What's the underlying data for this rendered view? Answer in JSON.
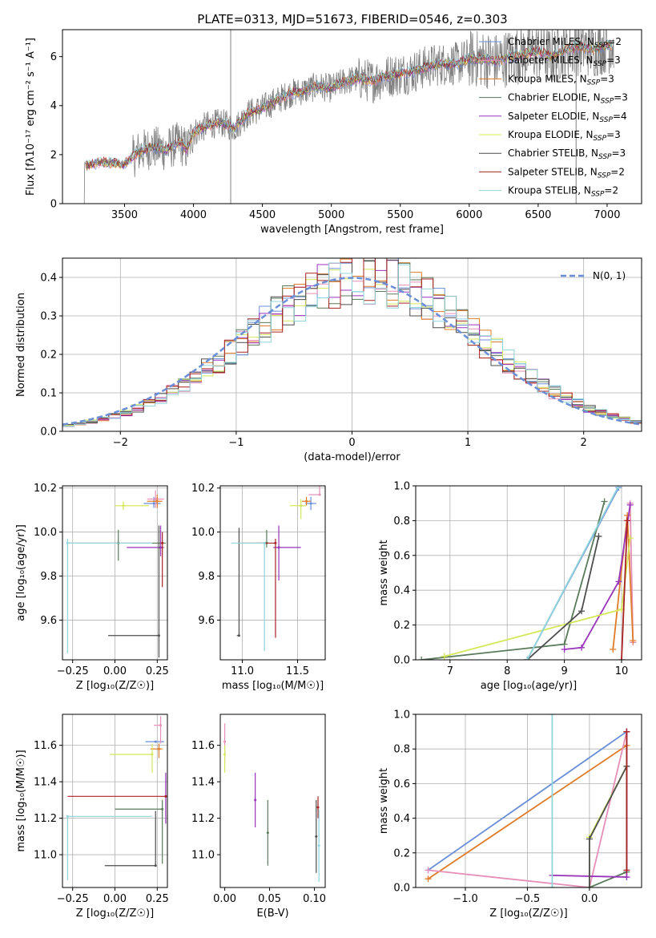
{
  "title": "PLATE=0313, MJD=51673, FIBERID=0546, z=0.303",
  "colors": {
    "gray": "#808080",
    "blue": "#6a8fd8",
    "orange": "#e07b28",
    "pink": "#e68fb8",
    "green": "#5a7a5a",
    "purple": "#9933bb",
    "yellow": "#d4e85a",
    "dark": "#4d4d4d",
    "red": "#aa2222",
    "cyan": "#90d4dc"
  },
  "chart_data": [
    {
      "type": "line",
      "id": "spectrum",
      "xlabel": "wavelength [Angstrom, rest frame]",
      "ylabel": "Flux [fλ10⁻¹⁷ erg cm⁻² s⁻¹ A⁻¹]",
      "xlim": [
        3050,
        7250
      ],
      "ylim": [
        0,
        7.1
      ],
      "xticks": [
        3500,
        4000,
        4500,
        5000,
        5500,
        6000,
        6500,
        7000
      ],
      "yticks": [
        0,
        2,
        4,
        6
      ],
      "legend_placement": "top-right",
      "legend": [
        {
          "label": "Chabrier MILES, N",
          "sub": "SSP",
          "tail": "=2",
          "color": "blue"
        },
        {
          "label": "Salpeter MILES, N",
          "sub": "SSP",
          "tail": "=3",
          "color": "pink"
        },
        {
          "label": "Kroupa MILES, N",
          "sub": "SSP",
          "tail": "=3",
          "color": "orange"
        },
        {
          "label": "Chabrier ELODIE, N",
          "sub": "SSP",
          "tail": "=3",
          "color": "green"
        },
        {
          "label": "Salpeter ELODIE, N",
          "sub": "SSP",
          "tail": "=4",
          "color": "purple"
        },
        {
          "label": "Kroupa ELODIE, N",
          "sub": "SSP",
          "tail": "=3",
          "color": "yellow"
        },
        {
          "label": "Chabrier STELIB, N",
          "sub": "SSP",
          "tail": "=3",
          "color": "dark"
        },
        {
          "label": "Salpeter STELIB, N",
          "sub": "SSP",
          "tail": "=2",
          "color": "red"
        },
        {
          "label": "Kroupa STELIB, N",
          "sub": "SSP",
          "tail": "=2",
          "color": "cyan"
        }
      ],
      "continuum": [
        [
          3200,
          1.55
        ],
        [
          3350,
          1.7
        ],
        [
          3500,
          1.6
        ],
        [
          3600,
          2.1
        ],
        [
          3700,
          2.3
        ],
        [
          3800,
          2.2
        ],
        [
          3900,
          2.5
        ],
        [
          3950,
          2.2
        ],
        [
          4000,
          2.9
        ],
        [
          4100,
          3.2
        ],
        [
          4200,
          3.3
        ],
        [
          4300,
          3.1
        ],
        [
          4400,
          3.7
        ],
        [
          4500,
          3.9
        ],
        [
          4600,
          4.2
        ],
        [
          4700,
          4.5
        ],
        [
          4800,
          4.6
        ],
        [
          4900,
          4.8
        ],
        [
          5000,
          4.7
        ],
        [
          5100,
          5.0
        ],
        [
          5200,
          5.1
        ],
        [
          5300,
          5.0
        ],
        [
          5400,
          5.2
        ],
        [
          5500,
          5.3
        ],
        [
          5600,
          5.4
        ],
        [
          5700,
          5.6
        ],
        [
          5800,
          5.7
        ],
        [
          5900,
          5.7
        ],
        [
          6000,
          5.9
        ],
        [
          6100,
          5.9
        ],
        [
          6200,
          5.8
        ],
        [
          6300,
          6.0
        ],
        [
          6400,
          6.1
        ],
        [
          6500,
          6.2
        ],
        [
          6600,
          6.0
        ],
        [
          6700,
          6.3
        ],
        [
          6800,
          6.4
        ],
        [
          6900,
          6.3
        ],
        [
          7000,
          6.5
        ],
        [
          7050,
          6.4
        ]
      ]
    },
    {
      "type": "bar",
      "id": "residuals",
      "xlabel": "(data-model)/error",
      "ylabel": "Normed distribution",
      "xlim": [
        -2.5,
        2.5
      ],
      "ylim": [
        0,
        0.45
      ],
      "xticks": [
        -2,
        -1,
        0,
        1,
        2
      ],
      "yticks": [
        0.0,
        0.1,
        0.2,
        0.3,
        0.4
      ],
      "grid": true,
      "legend_placement": "top-right",
      "legend_label": "N(0, 1)",
      "bin_width": 0.1
    },
    {
      "type": "scatter",
      "id": "z-age",
      "xlabel": "Z [log₁₀(Z/Z☉)]",
      "ylabel": "age  [log₁₀(age/yr)]",
      "xlim": [
        -0.31,
        0.31
      ],
      "ylim": [
        9.42,
        10.21
      ],
      "xticks": [
        -0.25,
        0.0,
        0.25
      ],
      "yticks": [
        9.6,
        9.8,
        10.0,
        10.2
      ],
      "grid": true,
      "points": [
        {
          "x": 0.23,
          "y": 10.13,
          "xe": [
            0.06,
            0.04
          ],
          "ye": [
            0.02,
            0.03
          ],
          "c": "blue"
        },
        {
          "x": 0.24,
          "y": 10.15,
          "xe": [
            0.05,
            0.05
          ],
          "ye": [
            0.04,
            0.04
          ],
          "c": "pink"
        },
        {
          "x": 0.25,
          "y": 10.14,
          "xe": [
            0.06,
            0.03
          ],
          "ye": [
            0.03,
            0.03
          ],
          "c": "orange"
        },
        {
          "x": 0.02,
          "y": 9.95,
          "xe": [
            0.3,
            0.28
          ],
          "ye": [
            0.08,
            0.06
          ],
          "c": "green"
        },
        {
          "x": 0.27,
          "y": 9.93,
          "xe": [
            0.2,
            0.02
          ],
          "ye": [
            0.04,
            0.1
          ],
          "c": "purple"
        },
        {
          "x": 0.05,
          "y": 10.12,
          "xe": [
            0.05,
            0.15
          ],
          "ye": [
            0.02,
            0.02
          ],
          "c": "yellow"
        },
        {
          "x": 0.26,
          "y": 9.53,
          "xe": [
            0.3,
            0.0
          ],
          "ye": [
            0.1,
            0.5
          ],
          "c": "dark"
        },
        {
          "x": 0.28,
          "y": 9.95,
          "xe": [
            0.0,
            0.0
          ],
          "ye": [
            0.2,
            0.05
          ],
          "c": "red"
        },
        {
          "x": -0.28,
          "y": 9.95,
          "xe": [
            0.0,
            0.5
          ],
          "ye": [
            0.5,
            0.02
          ],
          "c": "cyan"
        }
      ]
    },
    {
      "type": "scatter",
      "id": "mass-age",
      "xlabel": "mass [log₁₀(M/M☉)]",
      "ylabel": "",
      "xlim": [
        10.8,
        11.75
      ],
      "ylim": [
        9.42,
        10.21
      ],
      "xticks": [
        11.0,
        11.5
      ],
      "yticks": [
        9.6,
        9.8,
        10.0,
        10.2
      ],
      "grid": true,
      "points": [
        {
          "x": 11.62,
          "y": 10.13,
          "xe": [
            0.05,
            0.05
          ],
          "ye": [
            0.03,
            0.03
          ],
          "c": "blue"
        },
        {
          "x": 11.7,
          "y": 10.17,
          "xe": [
            0.1,
            0.0
          ],
          "ye": [
            0.0,
            0.06
          ],
          "c": "pink"
        },
        {
          "x": 11.58,
          "y": 10.14,
          "xe": [
            0.04,
            0.04
          ],
          "ye": [
            0.02,
            0.02
          ],
          "c": "orange"
        },
        {
          "x": 11.22,
          "y": 9.95,
          "xe": [
            0.1,
            0.02
          ],
          "ye": [
            0.02,
            0.06
          ],
          "c": "green"
        },
        {
          "x": 11.33,
          "y": 9.93,
          "xe": [
            0.05,
            0.2
          ],
          "ye": [
            0.15,
            0.1
          ],
          "c": "purple"
        },
        {
          "x": 11.53,
          "y": 10.12,
          "xe": [
            0.1,
            0.05
          ],
          "ye": [
            0.06,
            0.03
          ],
          "c": "yellow"
        },
        {
          "x": 10.97,
          "y": 9.53,
          "xe": [
            0.02,
            0.0
          ],
          "ye": [
            0.0,
            0.49
          ],
          "c": "dark"
        },
        {
          "x": 11.3,
          "y": 9.95,
          "xe": [
            0.3,
            0.0
          ],
          "ye": [
            0.43,
            0.02
          ],
          "c": "red"
        },
        {
          "x": 11.2,
          "y": 9.95,
          "xe": [
            0.3,
            0.0
          ],
          "ye": [
            0.49,
            0.0
          ],
          "c": "cyan"
        }
      ]
    },
    {
      "type": "line",
      "id": "age-weight",
      "xlabel": "age  [log₁₀(age/yr)]",
      "ylabel": "mass weight",
      "xlim": [
        6.4,
        10.35
      ],
      "ylim": [
        0,
        1.0
      ],
      "xticks": [
        7,
        8,
        9,
        10
      ],
      "yticks": [
        0.0,
        0.2,
        0.4,
        0.6,
        0.8,
        1.0
      ],
      "grid": true,
      "series": [
        {
          "c": "blue",
          "pts": [
            [
              8.35,
              0.0
            ],
            [
              9.95,
              0.99
            ]
          ]
        },
        {
          "c": "pink",
          "pts": [
            [
              10.15,
              0.9
            ],
            [
              10.2,
              0.1
            ]
          ]
        },
        {
          "c": "orange",
          "pts": [
            [
              9.85,
              0.06
            ],
            [
              10.1,
              0.83
            ],
            [
              10.2,
              0.11
            ]
          ]
        },
        {
          "c": "green",
          "pts": [
            [
              6.5,
              0.0
            ],
            [
              9.0,
              0.09
            ],
            [
              9.7,
              0.91
            ]
          ]
        },
        {
          "c": "purple",
          "pts": [
            [
              9.0,
              0.06
            ],
            [
              9.3,
              0.07
            ],
            [
              9.95,
              0.45
            ],
            [
              10.15,
              0.89
            ]
          ]
        },
        {
          "c": "yellow",
          "pts": [
            [
              6.9,
              0.02
            ],
            [
              10.0,
              0.29
            ],
            [
              10.15,
              0.7
            ]
          ]
        },
        {
          "c": "dark",
          "pts": [
            [
              8.35,
              0.0
            ],
            [
              9.3,
              0.28
            ],
            [
              9.6,
              0.71
            ]
          ]
        },
        {
          "c": "red",
          "pts": [
            [
              10.0,
              0.0
            ],
            [
              10.1,
              0.8
            ]
          ]
        },
        {
          "c": "cyan",
          "pts": [
            [
              8.35,
              0.0
            ],
            [
              9.95,
              1.0
            ]
          ]
        }
      ]
    },
    {
      "type": "scatter",
      "id": "z-mass",
      "xlabel": "Z [log₁₀(Z/Z☉)]",
      "ylabel": "mass [log₁₀(M/M☉)]",
      "xlim": [
        -0.31,
        0.31
      ],
      "ylim": [
        10.82,
        11.77
      ],
      "xticks": [
        -0.25,
        0.0,
        0.25
      ],
      "yticks": [
        11.0,
        11.2,
        11.4,
        11.6
      ],
      "grid": true,
      "points": [
        {
          "x": 0.24,
          "y": 11.62,
          "xe": [
            0.06,
            0.05
          ],
          "ye": [
            0.0,
            0.0
          ],
          "c": "blue"
        },
        {
          "x": 0.27,
          "y": 11.71,
          "xe": [
            0.04,
            0.0
          ],
          "ye": [
            0.1,
            0.05
          ],
          "c": "pink"
        },
        {
          "x": 0.26,
          "y": 11.58,
          "xe": [
            0.05,
            0.02
          ],
          "ye": [
            0.05,
            0.03
          ],
          "c": "orange"
        },
        {
          "x": 0.28,
          "y": 11.25,
          "xe": [
            0.28,
            0.0
          ],
          "ye": [
            0.3,
            0.05
          ],
          "c": "green"
        },
        {
          "x": 0.3,
          "y": 11.32,
          "xe": [
            0.0,
            0.0
          ],
          "ye": [
            0.15,
            0.13
          ],
          "c": "purple"
        },
        {
          "x": 0.22,
          "y": 11.55,
          "xe": [
            0.25,
            0.0
          ],
          "ye": [
            0.1,
            0.06
          ],
          "c": "yellow"
        },
        {
          "x": 0.24,
          "y": 10.94,
          "xe": [
            0.3,
            0.0
          ],
          "ye": [
            0.0,
            0.3
          ],
          "c": "dark"
        },
        {
          "x": 0.3,
          "y": 11.32,
          "xe": [
            0.58,
            0.0
          ],
          "ye": [
            0.0,
            0.0
          ],
          "c": "red"
        },
        {
          "x": -0.28,
          "y": 11.21,
          "xe": [
            0.0,
            0.5
          ],
          "ye": [
            0.35,
            0.0
          ],
          "c": "cyan"
        }
      ]
    },
    {
      "type": "scatter",
      "id": "ebv-mass",
      "xlabel": "E(B-V)",
      "ylabel": "",
      "xlim": [
        -0.005,
        0.112
      ],
      "ylim": [
        10.82,
        11.77
      ],
      "xticks": [
        0.0,
        0.05,
        0.1
      ],
      "yticks": [
        11.0,
        11.2,
        11.4,
        11.6
      ],
      "grid": false,
      "points": [
        {
          "x": 0.0,
          "y": 11.62,
          "ye": [
            0.1,
            0.1
          ],
          "c": "pink"
        },
        {
          "x": 0.0,
          "y": 11.55,
          "ye": [
            0.1,
            0.05
          ],
          "c": "yellow"
        },
        {
          "x": 0.034,
          "y": 11.3,
          "ye": [
            0.15,
            0.15
          ],
          "c": "purple"
        },
        {
          "x": 0.048,
          "y": 11.12,
          "ye": [
            0.18,
            0.18
          ],
          "c": "green"
        },
        {
          "x": 0.102,
          "y": 11.1,
          "ye": [
            0.2,
            0.2
          ],
          "c": "dark"
        },
        {
          "x": 0.104,
          "y": 11.26,
          "ye": [
            0.06,
            0.06
          ],
          "c": "red"
        },
        {
          "x": 0.105,
          "y": 11.05,
          "ye": [
            0.2,
            0.2
          ],
          "c": "cyan"
        }
      ]
    },
    {
      "type": "line",
      "id": "z-weight",
      "xlabel": "Z [log₁₀(Z/Z☉)]",
      "ylabel": "mass weight",
      "xlim": [
        -1.4,
        0.42
      ],
      "ylim": [
        0,
        1.0
      ],
      "xticks": [
        -1.0,
        -0.5,
        0.0
      ],
      "yticks": [
        0.0,
        0.2,
        0.4,
        0.6,
        0.8,
        1.0
      ],
      "grid": true,
      "series": [
        {
          "c": "blue",
          "pts": [
            [
              -1.3,
              0.1
            ],
            [
              0.3,
              0.9
            ]
          ]
        },
        {
          "c": "orange",
          "pts": [
            [
              -1.3,
              0.05
            ],
            [
              0.3,
              0.82
            ]
          ]
        },
        {
          "c": "pink",
          "pts": [
            [
              -1.3,
              0.1
            ],
            [
              0.0,
              0.0
            ],
            [
              0.3,
              0.9
            ]
          ]
        },
        {
          "c": "green",
          "pts": [
            [
              0.0,
              0.0
            ],
            [
              0.3,
              0.09
            ],
            [
              0.3,
              0.9
            ]
          ]
        },
        {
          "c": "purple",
          "pts": [
            [
              -0.3,
              0.07
            ],
            [
              0.3,
              0.06
            ],
            [
              0.3,
              0.9
            ]
          ]
        },
        {
          "c": "yellow",
          "pts": [
            [
              0.0,
              0.0
            ],
            [
              0.0,
              0.29
            ],
            [
              0.3,
              0.7
            ]
          ]
        },
        {
          "c": "dark",
          "pts": [
            [
              0.0,
              0.0
            ],
            [
              0.0,
              0.28
            ],
            [
              0.3,
              0.7
            ]
          ]
        },
        {
          "c": "red",
          "pts": [
            [
              0.3,
              0.1
            ],
            [
              0.3,
              0.9
            ]
          ]
        },
        {
          "c": "cyan",
          "pts": [
            [
              -0.3,
              0.0
            ],
            [
              -0.3,
              1.0
            ]
          ]
        }
      ]
    }
  ]
}
